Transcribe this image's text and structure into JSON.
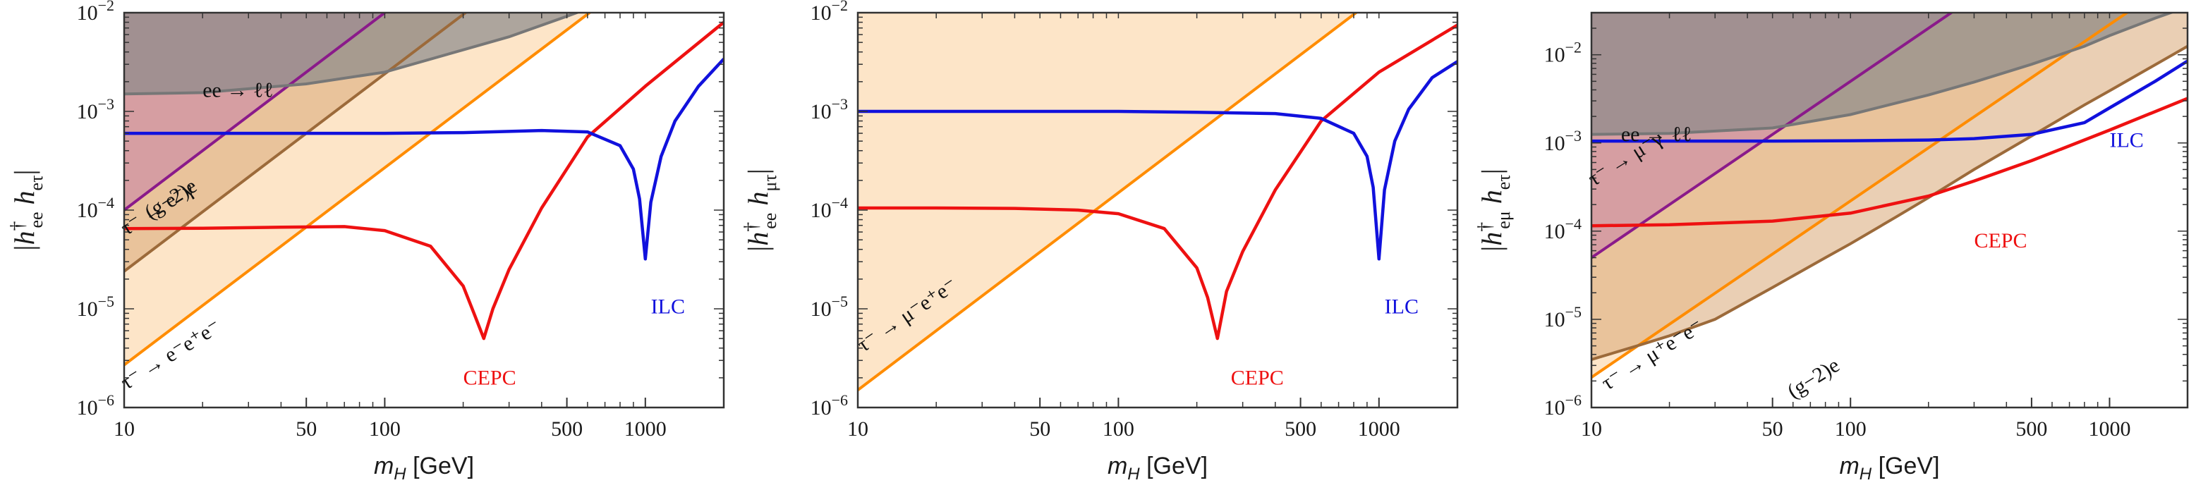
{
  "chart_data": [
    {
      "type": "line",
      "panel": "left",
      "ylabel": "|h†ee heτ|",
      "xlabel": "mH [GeV]",
      "xscale": "log",
      "yscale": "log",
      "xlim": [
        10,
        2000
      ],
      "ylim": [
        1e-06,
        0.01
      ],
      "xticks": [
        10,
        50,
        100,
        500,
        1000
      ],
      "xtick_labels": [
        "10",
        "50",
        "100",
        "500",
        "1000"
      ],
      "yticks": [
        1e-06,
        1e-05,
        0.0001,
        0.001,
        0.01
      ],
      "ytick_labels": [
        "10-6",
        "10-5",
        "10-4",
        "10-3",
        "10-2"
      ],
      "regions": [
        {
          "name": "tau-eee",
          "label": "τ⁻ → e⁻e⁺e⁻",
          "color": "#fde5c8",
          "edge": "#ff8c00",
          "x": [
            10,
            2000
          ],
          "y": [
            2.7e-06,
            0.107
          ]
        },
        {
          "name": "g-2",
          "label": "(g−2)e",
          "color": "#d9a877",
          "edge": "#9c6a3a",
          "x": [
            10,
            2000
          ],
          "y": [
            2.4e-05,
            0.96
          ]
        },
        {
          "name": "tau-egamma",
          "label": "τ⁻ → e⁻γ",
          "color": "#c77fa8",
          "edge": "#8a1a8a",
          "x": [
            10,
            2000
          ],
          "y": [
            0.0001,
            4.0
          ]
        },
        {
          "name": "ee-ll",
          "label": "ee → ℓℓ",
          "color": "#8a8a8a",
          "edge": "#777777",
          "x": [
            10,
            20,
            50,
            100,
            200,
            300,
            500,
            800,
            1000,
            1500,
            2000
          ],
          "y": [
            0.0015,
            0.00155,
            0.0019,
            0.0025,
            0.0042,
            0.0057,
            0.0092,
            0.0145,
            0.019,
            0.03,
            0.04
          ]
        }
      ],
      "series": [
        {
          "name": "CEPC",
          "label": "CEPC",
          "color": "#ee1111",
          "x": [
            10,
            20,
            40,
            70,
            100,
            150,
            200,
            220,
            240,
            260,
            300,
            400,
            600,
            1000,
            2000
          ],
          "y": [
            6.5e-05,
            6.55e-05,
            6.7e-05,
            6.8e-05,
            6.2e-05,
            4.3e-05,
            1.7e-05,
            9e-06,
            5e-06,
            1e-05,
            2.5e-05,
            0.000105,
            0.00055,
            0.0018,
            0.008
          ]
        },
        {
          "name": "ILC",
          "label": "ILC",
          "color": "#1111dd",
          "x": [
            10,
            50,
            100,
            200,
            400,
            600,
            800,
            900,
            950,
            1000,
            1050,
            1150,
            1300,
            1600,
            2000
          ],
          "y": [
            0.0006,
            0.0006,
            0.0006,
            0.00061,
            0.00064,
            0.00062,
            0.00045,
            0.00026,
            0.00013,
            3.2e-05,
            0.00012,
            0.00035,
            0.0008,
            0.0018,
            0.0034
          ]
        }
      ]
    },
    {
      "type": "line",
      "panel": "middle",
      "ylabel": "|h†ee hμτ|",
      "xlabel": "mH [GeV]",
      "xscale": "log",
      "yscale": "log",
      "xlim": [
        10,
        2000
      ],
      "ylim": [
        1e-06,
        0.01
      ],
      "xticks": [
        10,
        50,
        100,
        500,
        1000
      ],
      "xtick_labels": [
        "10",
        "50",
        "100",
        "500",
        "1000"
      ],
      "yticks": [
        1e-06,
        1e-05,
        0.0001,
        0.001,
        0.01
      ],
      "ytick_labels": [
        "10-6",
        "10-5",
        "10-4",
        "10-3",
        "10-2"
      ],
      "regions": [
        {
          "name": "tau-muee",
          "label": "τ⁻ → μ⁻e⁺e⁻",
          "color": "#fde5c8",
          "edge": "#ff8c00",
          "x": [
            10,
            2000
          ],
          "y": [
            1.5e-06,
            0.06
          ]
        }
      ],
      "series": [
        {
          "name": "CEPC",
          "label": "CEPC",
          "color": "#ee1111",
          "x": [
            10,
            20,
            40,
            70,
            100,
            150,
            200,
            220,
            240,
            260,
            300,
            400,
            600,
            1000,
            2000
          ],
          "y": [
            0.000105,
            0.000105,
            0.000104,
            0.0001,
            9.2e-05,
            6.5e-05,
            2.6e-05,
            1.3e-05,
            5e-06,
            1.5e-05,
            3.8e-05,
            0.00016,
            0.0008,
            0.0025,
            0.0075
          ]
        },
        {
          "name": "ILC",
          "label": "ILC",
          "color": "#1111dd",
          "x": [
            10,
            50,
            100,
            200,
            400,
            600,
            800,
            900,
            950,
            1000,
            1050,
            1150,
            1300,
            1600,
            2000
          ],
          "y": [
            0.001,
            0.001,
            0.001,
            0.00098,
            0.00095,
            0.00085,
            0.0006,
            0.00035,
            0.00017,
            3.2e-05,
            0.00016,
            0.0005,
            0.00105,
            0.0022,
            0.0032
          ]
        }
      ]
    },
    {
      "type": "line",
      "panel": "right",
      "ylabel": "|h†eμ heτ|",
      "xlabel": "mH [GeV]",
      "xscale": "log",
      "yscale": "log",
      "xlim": [
        10,
        2000
      ],
      "ylim": [
        1e-06,
        0.03
      ],
      "xticks": [
        10,
        50,
        100,
        500,
        1000
      ],
      "xtick_labels": [
        "10",
        "50",
        "100",
        "500",
        "1000"
      ],
      "yticks": [
        1e-06,
        1e-05,
        0.0001,
        0.001,
        0.01
      ],
      "ytick_labels": [
        "10-6",
        "10-5",
        "10-4",
        "10-3",
        "10-2"
      ],
      "regions": [
        {
          "name": "tau-muee",
          "label": "τ⁻ → μ⁺e⁻e⁻",
          "color": "#fde5c8",
          "edge": "#ff8c00",
          "x": [
            10,
            2000
          ],
          "y": [
            2.2e-06,
            0.088
          ]
        },
        {
          "name": "g-2",
          "label": "(g−2)e",
          "color": "#d9a877",
          "edge": "#9c6a3a",
          "x": [
            10,
            15,
            20,
            30,
            50,
            80,
            100,
            150,
            200,
            300,
            500,
            800,
            1000,
            2000
          ],
          "y": [
            3.5e-06,
            5e-06,
            6.5e-06,
            1e-05,
            2.3e-05,
            5e-05,
            7.2e-05,
            0.000145,
            0.00024,
            0.0005,
            0.0012,
            0.0027,
            0.0039,
            0.0125
          ]
        },
        {
          "name": "tau-mugamma",
          "label": "τ⁻ → μ⁻γ",
          "color": "#c77fa8",
          "edge": "#8a1a8a",
          "x": [
            10,
            2000
          ],
          "y": [
            5e-05,
            2.0
          ]
        },
        {
          "name": "ee-ll",
          "label": "ee → ℓℓ",
          "color": "#8a8a8a",
          "edge": "#777777",
          "x": [
            10,
            20,
            50,
            100,
            200,
            300,
            500,
            800,
            1000,
            1500,
            2000
          ],
          "y": [
            0.00125,
            0.00128,
            0.00148,
            0.0021,
            0.0035,
            0.0049,
            0.0078,
            0.0125,
            0.0165,
            0.026,
            0.035
          ]
        }
      ],
      "series": [
        {
          "name": "CEPC",
          "label": "CEPC",
          "color": "#ee1111",
          "x": [
            10,
            20,
            50,
            100,
            200,
            300,
            500,
            1000,
            2000
          ],
          "y": [
            0.000115,
            0.000118,
            0.00013,
            0.00016,
            0.00025,
            0.00037,
            0.00063,
            0.0014,
            0.0032
          ]
        },
        {
          "name": "ILC",
          "label": "ILC",
          "color": "#1111dd",
          "x": [
            10,
            50,
            100,
            200,
            300,
            500,
            800,
            1000,
            1500,
            2000
          ],
          "y": [
            0.00105,
            0.00105,
            0.00106,
            0.00108,
            0.00112,
            0.00125,
            0.0017,
            0.0025,
            0.005,
            0.0085
          ]
        }
      ]
    }
  ]
}
